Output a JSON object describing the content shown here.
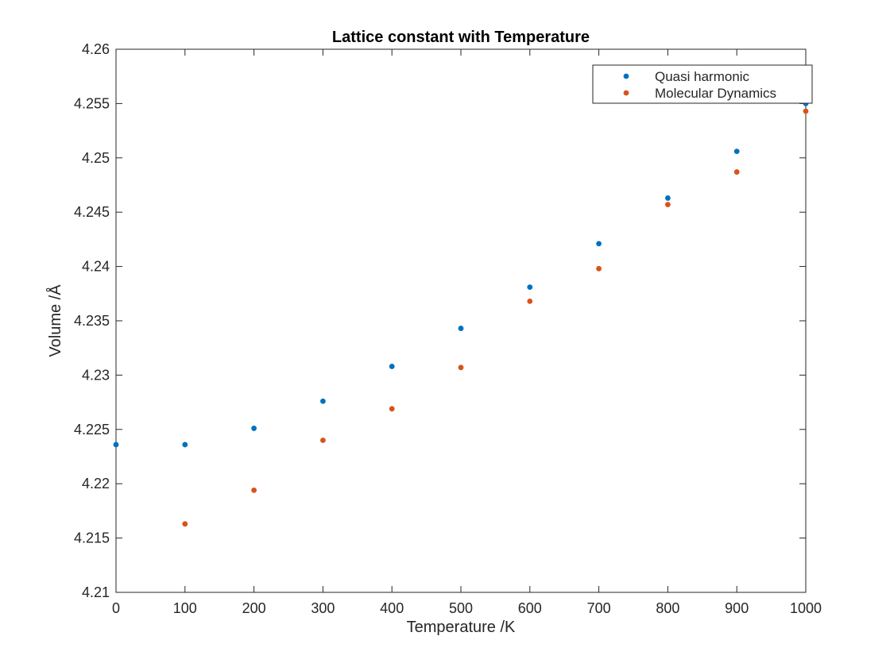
{
  "chart_data": {
    "type": "scatter",
    "title": "Lattice constant with Temperature",
    "xlabel": "Temperature /K",
    "ylabel": "Volume /Å",
    "xlim": [
      0,
      1000
    ],
    "ylim": [
      4.21,
      4.26
    ],
    "xticks": [
      0,
      100,
      200,
      300,
      400,
      500,
      600,
      700,
      800,
      900,
      1000
    ],
    "yticks": [
      4.21,
      4.215,
      4.22,
      4.225,
      4.23,
      4.235,
      4.24,
      4.245,
      4.25,
      4.255,
      4.26
    ],
    "xtick_labels": [
      "0",
      "100",
      "200",
      "300",
      "400",
      "500",
      "600",
      "700",
      "800",
      "900",
      "1000"
    ],
    "ytick_labels": [
      "4.21",
      "4.215",
      "4.22",
      "4.225",
      "4.23",
      "4.235",
      "4.24",
      "4.245",
      "4.25",
      "4.255",
      "4.26"
    ],
    "grid": false,
    "legend_position": "top-right",
    "series": [
      {
        "name": "Quasi harmonic",
        "color": "#0072bd",
        "x": [
          0,
          100,
          200,
          300,
          400,
          500,
          600,
          700,
          800,
          900,
          1000
        ],
        "y": [
          4.2236,
          4.2236,
          4.2251,
          4.2276,
          4.2308,
          4.2343,
          4.2381,
          4.2421,
          4.2463,
          4.2506,
          4.255
        ]
      },
      {
        "name": "Molecular Dynamics",
        "color": "#d95319",
        "x": [
          100,
          200,
          300,
          400,
          500,
          600,
          700,
          800,
          900,
          1000
        ],
        "y": [
          4.2163,
          4.2194,
          4.224,
          4.2269,
          4.2307,
          4.2368,
          4.2398,
          4.2457,
          4.2487,
          4.2543
        ]
      }
    ]
  }
}
